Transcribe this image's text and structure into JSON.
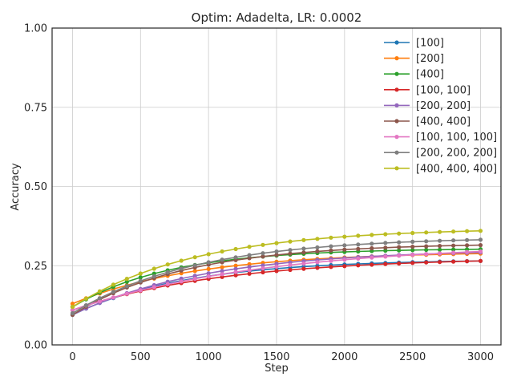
{
  "chart_data": {
    "type": "line",
    "title": "Optim: Adadelta, LR: 0.0002",
    "xlabel": "Step",
    "ylabel": "Accuracy",
    "xlim": [
      -150,
      3150
    ],
    "ylim": [
      0,
      1
    ],
    "xticks": [
      0,
      500,
      1000,
      1500,
      2000,
      2500,
      3000
    ],
    "xtick_labels": [
      "0",
      "500",
      "1000",
      "1500",
      "2000",
      "2500",
      "3000"
    ],
    "yticks": [
      0,
      0.25,
      0.5,
      0.75,
      1.0
    ],
    "ytick_labels": [
      "0.00",
      "0.25",
      "0.50",
      "0.75",
      "1.00"
    ],
    "grid": true,
    "legend_position": "top-right",
    "x": [
      0,
      100,
      200,
      300,
      400,
      500,
      600,
      700,
      800,
      900,
      1000,
      1100,
      1200,
      1300,
      1400,
      1500,
      1600,
      1700,
      1800,
      1900,
      2000,
      2100,
      2200,
      2300,
      2400,
      2500,
      2600,
      2700,
      2800,
      2900,
      3000
    ],
    "series": [
      {
        "name": "[100]",
        "color": "#1f77b4",
        "start": 0.095,
        "end": 0.265,
        "k": 0.0012
      },
      {
        "name": "[200]",
        "color": "#ff7f0e",
        "start": 0.13,
        "end": 0.288,
        "k": 0.0011
      },
      {
        "name": "[400]",
        "color": "#2ca02c",
        "start": 0.12,
        "end": 0.302,
        "k": 0.0014
      },
      {
        "name": "[100, 100]",
        "color": "#d62728",
        "start": 0.11,
        "end": 0.265,
        "k": 0.0009
      },
      {
        "name": "[200, 200]",
        "color": "#9467bd",
        "start": 0.095,
        "end": 0.292,
        "k": 0.001
      },
      {
        "name": "[400, 400]",
        "color": "#8c564b",
        "start": 0.095,
        "end": 0.315,
        "k": 0.0012
      },
      {
        "name": "[100, 100, 100]",
        "color": "#e377c2",
        "start": 0.11,
        "end": 0.295,
        "k": 0.0007
      },
      {
        "name": "[200, 200, 200]",
        "color": "#7f7f7f",
        "start": 0.1,
        "end": 0.332,
        "k": 0.0011
      },
      {
        "name": "[400, 400, 400]",
        "color": "#bcbd22",
        "start": 0.12,
        "end": 0.36,
        "k": 0.0011
      }
    ]
  }
}
